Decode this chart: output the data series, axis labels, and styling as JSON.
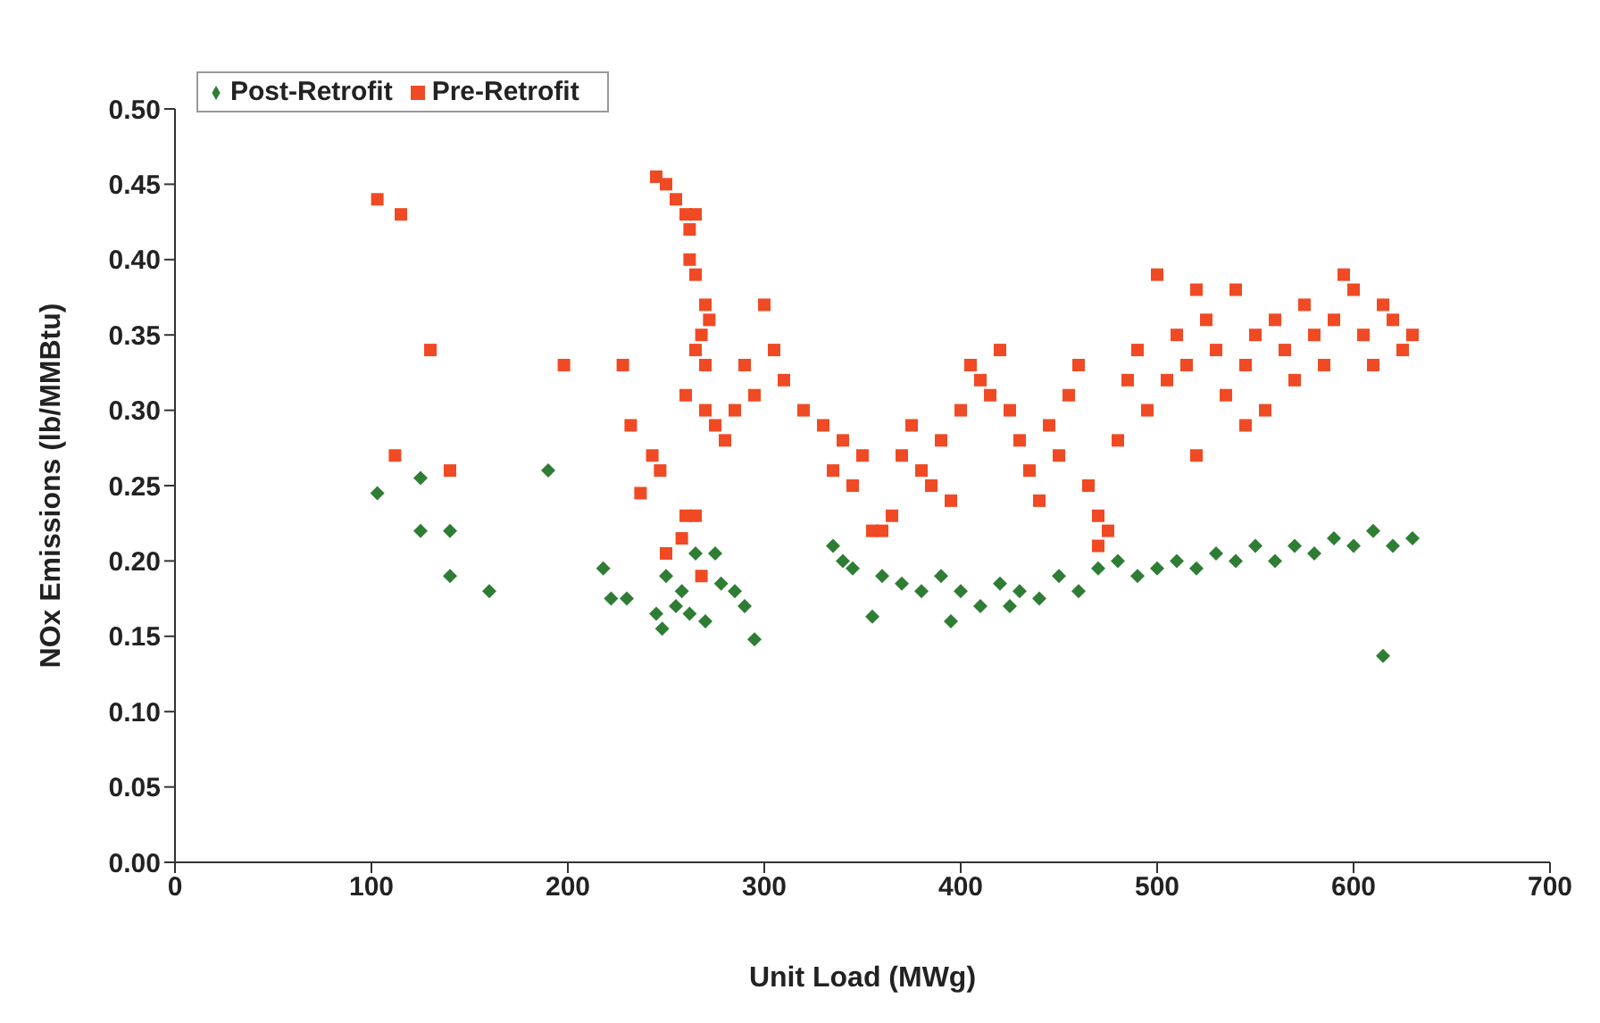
{
  "chart_data": {
    "type": "scatter",
    "xlabel": "Unit Load (MWg)",
    "ylabel": "NOx Emissions (lb/MMBtu)",
    "xlim": [
      0,
      700
    ],
    "xticks": [
      0,
      100,
      200,
      300,
      400,
      500,
      600,
      700
    ],
    "ylim": [
      0,
      0.5
    ],
    "yticks": [
      {
        "value": 0,
        "label": "0.00"
      },
      {
        "value": 0.05,
        "label": "0.05"
      },
      {
        "value": 0.1,
        "label": "0.10"
      },
      {
        "value": 0.15,
        "label": "0.15"
      },
      {
        "value": 0.2,
        "label": "0.20"
      },
      {
        "value": 0.25,
        "label": "0.25"
      },
      {
        "value": 0.3,
        "label": "0.30"
      },
      {
        "value": 0.35,
        "label": "0.35"
      },
      {
        "value": 0.4,
        "label": "0.40"
      },
      {
        "value": 0.45,
        "label": "0.45"
      },
      {
        "value": 0.5,
        "label": "0.50"
      }
    ],
    "grid": false,
    "legend": "top left",
    "series": [
      {
        "name": "Pre-Retrofit",
        "color": "#f04a24",
        "marker": "square",
        "x": [
          103,
          115,
          130,
          112,
          140,
          198,
          228,
          232,
          237,
          243,
          247,
          250,
          245,
          250,
          255,
          260,
          262,
          265,
          262,
          265,
          270,
          272,
          268,
          265,
          270,
          260,
          270,
          275,
          280,
          285,
          290,
          295,
          300,
          305,
          310,
          320,
          330,
          340,
          335,
          345,
          350,
          355,
          360,
          365,
          370,
          375,
          380,
          385,
          390,
          395,
          400,
          405,
          410,
          415,
          420,
          425,
          430,
          435,
          440,
          445,
          450,
          455,
          460,
          465,
          470,
          475,
          480,
          485,
          490,
          495,
          500,
          505,
          510,
          515,
          520,
          525,
          530,
          535,
          540,
          545,
          550,
          555,
          560,
          565,
          570,
          575,
          580,
          585,
          590,
          595,
          600,
          605,
          610,
          615,
          620,
          625,
          630,
          520,
          545,
          470,
          260,
          265,
          258,
          268
        ],
        "values": [
          0.44,
          0.43,
          0.34,
          0.27,
          0.26,
          0.33,
          0.33,
          0.29,
          0.245,
          0.27,
          0.26,
          0.205,
          0.455,
          0.45,
          0.44,
          0.43,
          0.42,
          0.43,
          0.4,
          0.39,
          0.37,
          0.36,
          0.35,
          0.34,
          0.33,
          0.31,
          0.3,
          0.29,
          0.28,
          0.3,
          0.33,
          0.31,
          0.37,
          0.34,
          0.32,
          0.3,
          0.29,
          0.28,
          0.26,
          0.25,
          0.27,
          0.22,
          0.22,
          0.23,
          0.27,
          0.29,
          0.26,
          0.25,
          0.28,
          0.24,
          0.3,
          0.33,
          0.32,
          0.31,
          0.34,
          0.3,
          0.28,
          0.26,
          0.24,
          0.29,
          0.27,
          0.31,
          0.33,
          0.25,
          0.21,
          0.22,
          0.28,
          0.32,
          0.34,
          0.3,
          0.39,
          0.32,
          0.35,
          0.33,
          0.38,
          0.36,
          0.34,
          0.31,
          0.38,
          0.33,
          0.35,
          0.3,
          0.36,
          0.34,
          0.32,
          0.37,
          0.35,
          0.33,
          0.36,
          0.39,
          0.38,
          0.35,
          0.33,
          0.37,
          0.36,
          0.34,
          0.35,
          0.27,
          0.29,
          0.23,
          0.23,
          0.23,
          0.215,
          0.19
        ]
      },
      {
        "name": "Post-Retrofit",
        "color": "#2f7d34",
        "marker": "diamond",
        "x": [
          103,
          125,
          125,
          140,
          140,
          160,
          190,
          218,
          222,
          230,
          245,
          248,
          250,
          255,
          258,
          262,
          265,
          270,
          275,
          278,
          285,
          290,
          295,
          335,
          340,
          345,
          355,
          360,
          370,
          380,
          390,
          400,
          410,
          420,
          430,
          440,
          450,
          460,
          470,
          480,
          490,
          500,
          510,
          520,
          530,
          540,
          550,
          560,
          570,
          580,
          590,
          600,
          610,
          620,
          630,
          615,
          395,
          425
        ],
        "values": [
          0.245,
          0.255,
          0.22,
          0.22,
          0.19,
          0.18,
          0.26,
          0.195,
          0.175,
          0.175,
          0.165,
          0.155,
          0.19,
          0.17,
          0.18,
          0.165,
          0.205,
          0.16,
          0.205,
          0.185,
          0.18,
          0.17,
          0.148,
          0.21,
          0.2,
          0.195,
          0.163,
          0.19,
          0.185,
          0.18,
          0.19,
          0.18,
          0.17,
          0.185,
          0.18,
          0.175,
          0.19,
          0.18,
          0.195,
          0.2,
          0.19,
          0.195,
          0.2,
          0.195,
          0.205,
          0.2,
          0.21,
          0.2,
          0.21,
          0.205,
          0.215,
          0.21,
          0.22,
          0.21,
          0.215,
          0.137,
          0.16,
          0.17
        ]
      }
    ]
  }
}
